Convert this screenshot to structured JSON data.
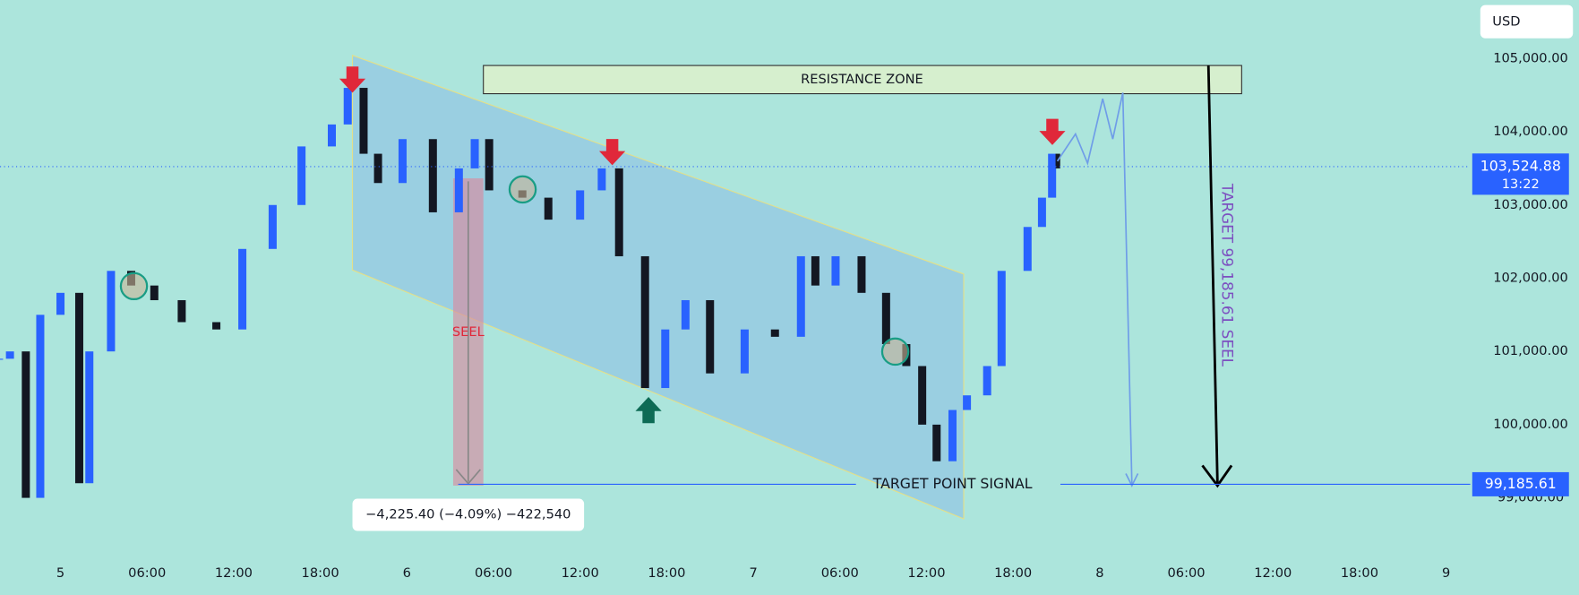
{
  "chart_data": {
    "type": "candlestick",
    "x": [
      -4.2,
      -3.5,
      -2.4,
      -1.4,
      0,
      1.3,
      2,
      3.5,
      4.9,
      6.5,
      8.4,
      10.8,
      12.6,
      14.7,
      16.7,
      18.8,
      19.9,
      21,
      22,
      23.7,
      25.8,
      27.6,
      28.7,
      29.7,
      32,
      33.8,
      36,
      37.5,
      38.7,
      40.5,
      41.9,
      43.3,
      45,
      47.4,
      49.5,
      51.3,
      52.3,
      53.7,
      55.5,
      57.2,
      58.6,
      59.7,
      60.7,
      61.8,
      62.8,
      64.2,
      65.2,
      67,
      68,
      68.7,
      69.1
    ],
    "values": [
      100900,
      101000,
      99000,
      101500,
      101800,
      99200,
      101000,
      102100,
      101900,
      101700,
      101400,
      101300,
      102400,
      103000,
      103800,
      104100,
      104600,
      103700,
      103300,
      103900,
      102900,
      103500,
      103900,
      103200,
      103100,
      102800,
      103200,
      103500,
      102300,
      100500,
      101300,
      101700,
      100700,
      101300,
      101200,
      102300,
      101900,
      102300,
      101800,
      101100,
      100800,
      100000,
      99500,
      100200,
      100400,
      100800,
      102100,
      102700,
      103100,
      103700,
      103500
    ],
    "up_color": "#2962ff",
    "down_color": "#131722",
    "xlim": [
      -4.19,
      97.67
    ],
    "xticks": [
      {
        "value": 0,
        "label": "5"
      },
      {
        "value": 6,
        "label": "06:00"
      },
      {
        "value": 12,
        "label": "12:00"
      },
      {
        "value": 18,
        "label": "18:00"
      },
      {
        "value": 24,
        "label": "6"
      },
      {
        "value": 30,
        "label": "06:00"
      },
      {
        "value": 36,
        "label": "12:00"
      },
      {
        "value": 42,
        "label": "18:00"
      },
      {
        "value": 48,
        "label": "7"
      },
      {
        "value": 54,
        "label": "06:00"
      },
      {
        "value": 60,
        "label": "12:00"
      },
      {
        "value": 66,
        "label": "18:00"
      },
      {
        "value": 72,
        "label": "8"
      },
      {
        "value": 78,
        "label": "06:00"
      },
      {
        "value": 84,
        "label": "12:00"
      },
      {
        "value": 90,
        "label": "18:00"
      },
      {
        "value": 96,
        "label": "9"
      }
    ],
    "ylim": [
      98300,
      105800
    ],
    "yticks": [
      {
        "value": 105000,
        "label": "105,000.00"
      },
      {
        "value": 104000,
        "label": "104,000.00"
      },
      {
        "value": 103000,
        "label": "103,000.00"
      },
      {
        "value": 102000,
        "label": "102,000.00"
      },
      {
        "value": 101000,
        "label": "101,000.00"
      },
      {
        "value": 100000,
        "label": "100,000.00"
      },
      {
        "value": 99000,
        "label": "99,000.00"
      }
    ],
    "currency": "USD",
    "current_price": {
      "value": 103524.88,
      "label": "103,524.88"
    },
    "countdown": "13:22",
    "target_price": {
      "value": 99185.61,
      "label": "99,185.61"
    },
    "annotations": {
      "resistance": "RESISTANCE  ZONE",
      "sell": "SEEL",
      "target_signal": "TARGET   POINT   SIGNAL",
      "target_vertical": "TARGET  99,185.61  SEEL",
      "measure": "−4,225.40 (−4.09%) −422,540"
    }
  }
}
